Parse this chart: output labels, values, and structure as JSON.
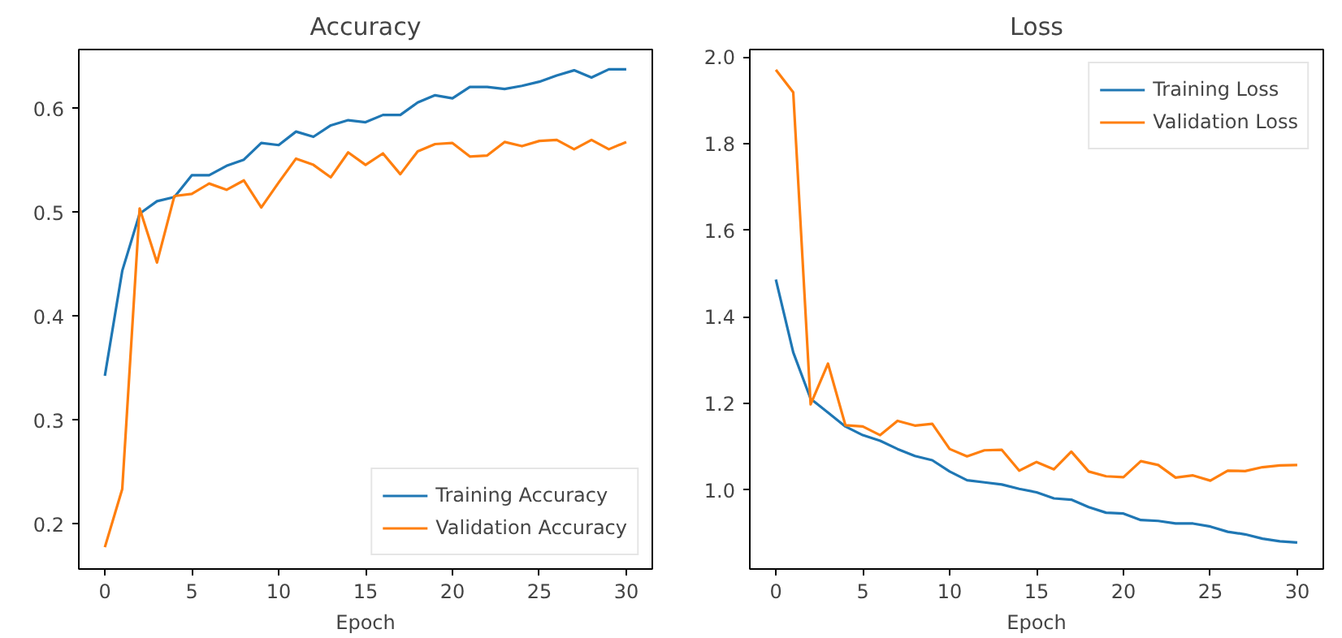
{
  "chart_data": [
    {
      "type": "line",
      "title": "Accuracy",
      "xlabel": "Epoch",
      "x": [
        0,
        1,
        2,
        3,
        4,
        5,
        6,
        7,
        8,
        9,
        10,
        11,
        12,
        13,
        14,
        15,
        16,
        17,
        18,
        19,
        20,
        21,
        22,
        23,
        24,
        25,
        26,
        27,
        28,
        29,
        30
      ],
      "xlim": [
        -1.5,
        31.5
      ],
      "xticks": [
        0,
        5,
        10,
        15,
        20,
        25,
        30
      ],
      "ylim": [
        0.157,
        0.657
      ],
      "yticks": [
        0.2,
        0.3,
        0.4,
        0.5,
        0.6
      ],
      "grid": false,
      "legend": "bottom right",
      "series": [
        {
          "name": "Training Accuracy",
          "color": "#1f77b4",
          "values": [
            0.343,
            0.444,
            0.499,
            0.511,
            0.515,
            0.536,
            0.536,
            0.545,
            0.551,
            0.567,
            0.565,
            0.578,
            0.573,
            0.584,
            0.589,
            0.587,
            0.594,
            0.594,
            0.606,
            0.613,
            0.61,
            0.621,
            0.621,
            0.619,
            0.622,
            0.626,
            0.632,
            0.637,
            0.63,
            0.638,
            0.638
          ]
        },
        {
          "name": "Validation Accuracy",
          "color": "#ff7f0e",
          "values": [
            0.178,
            0.234,
            0.504,
            0.452,
            0.516,
            0.518,
            0.528,
            0.522,
            0.531,
            0.505,
            0.529,
            0.552,
            0.546,
            0.534,
            0.558,
            0.546,
            0.557,
            0.537,
            0.559,
            0.566,
            0.567,
            0.554,
            0.555,
            0.568,
            0.564,
            0.569,
            0.57,
            0.561,
            0.57,
            0.561,
            0.568
          ]
        }
      ]
    },
    {
      "type": "line",
      "title": "Loss",
      "xlabel": "Epoch",
      "x": [
        0,
        1,
        2,
        3,
        4,
        5,
        6,
        7,
        8,
        9,
        10,
        11,
        12,
        13,
        14,
        15,
        16,
        17,
        18,
        19,
        20,
        21,
        22,
        23,
        24,
        25,
        26,
        27,
        28,
        29,
        30
      ],
      "xlim": [
        -1.5,
        31.5
      ],
      "xticks": [
        0,
        5,
        10,
        15,
        20,
        25,
        30
      ],
      "ylim": [
        0.818,
        2.017
      ],
      "yticks": [
        {
          "value": 1,
          "label": "1.0"
        },
        1.2,
        1.4,
        1.6,
        1.8,
        {
          "value": 2,
          "label": "2.0"
        }
      ],
      "grid": false,
      "legend": "top right",
      "series": [
        {
          "name": "Training Loss",
          "color": "#1f77b4",
          "values": [
            1.486,
            1.318,
            1.211,
            1.179,
            1.147,
            1.127,
            1.114,
            1.095,
            1.079,
            1.069,
            1.043,
            1.023,
            1.018,
            1.013,
            1.003,
            0.995,
            0.981,
            0.978,
            0.961,
            0.948,
            0.946,
            0.931,
            0.929,
            0.923,
            0.923,
            0.916,
            0.904,
            0.898,
            0.888,
            0.882,
            0.879
          ]
        },
        {
          "name": "Validation Loss",
          "color": "#ff7f0e",
          "values": [
            1.97,
            1.918,
            1.198,
            1.292,
            1.15,
            1.147,
            1.127,
            1.16,
            1.149,
            1.153,
            1.095,
            1.078,
            1.092,
            1.093,
            1.045,
            1.065,
            1.048,
            1.089,
            1.043,
            1.032,
            1.03,
            1.067,
            1.058,
            1.029,
            1.034,
            1.022,
            1.045,
            1.044,
            1.053,
            1.057,
            1.058
          ]
        }
      ]
    }
  ]
}
